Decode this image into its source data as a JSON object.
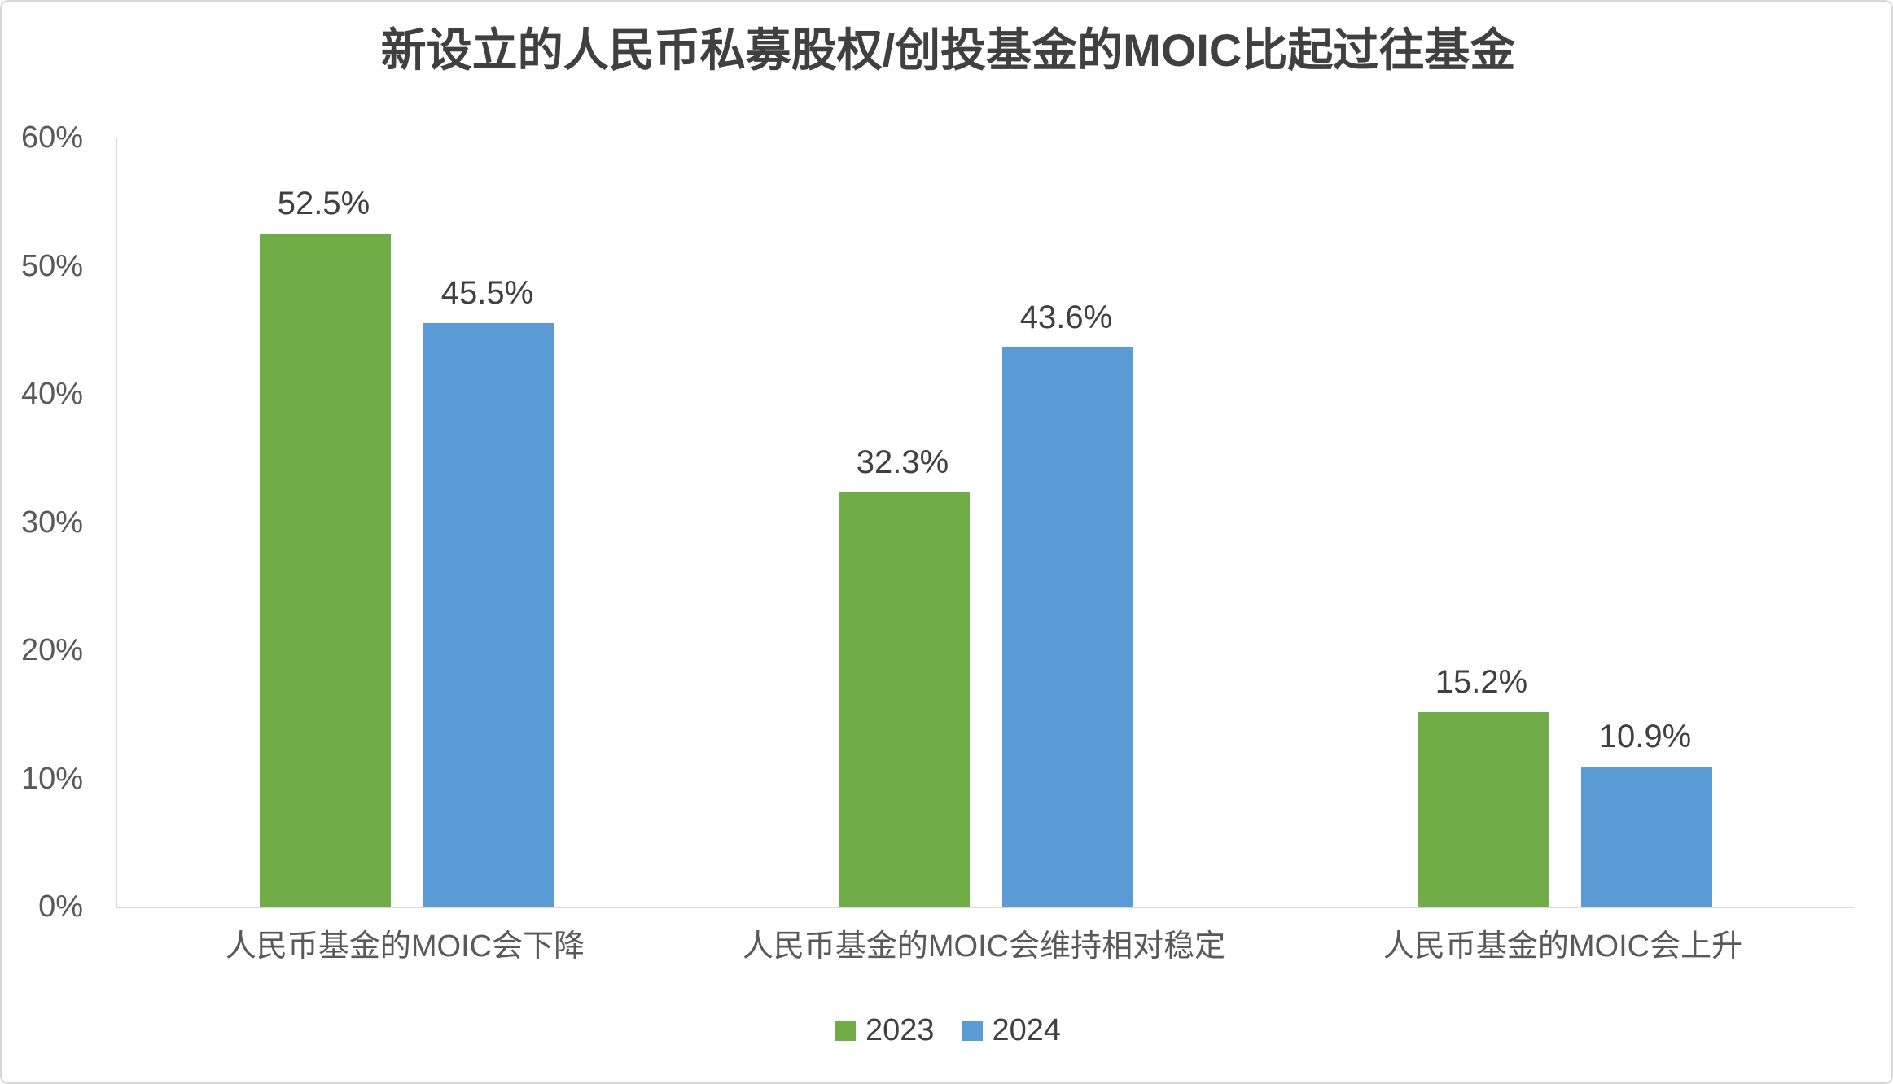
{
  "chart_data": {
    "type": "bar",
    "title": "新设立的人民币私募股权/创投基金的MOIC比起过往基金",
    "categories": [
      "人民币基金的MOIC会下降",
      "人民币基金的MOIC会维持相对稳定",
      "人民币基金的MOIC会上升"
    ],
    "series": [
      {
        "name": "2023",
        "color": "#70AD47",
        "values": [
          52.5,
          32.3,
          15.2
        ],
        "labels": [
          "52.5%",
          "32.3%",
          "15.2%"
        ]
      },
      {
        "name": "2024",
        "color": "#5B9BD5",
        "values": [
          45.5,
          43.6,
          10.9
        ],
        "labels": [
          "45.5%",
          "43.6%",
          "10.9%"
        ]
      }
    ],
    "y_axis": {
      "min": 0,
      "max": 60,
      "tick_step": 10,
      "tick_values": [
        0,
        10,
        20,
        30,
        40,
        50,
        60
      ],
      "tick_labels": [
        "0%",
        "10%",
        "20%",
        "30%",
        "40%",
        "50%",
        "60%"
      ]
    },
    "grid": false,
    "legend_position": "bottom",
    "colors": {
      "title_text": "#404040",
      "axis_text": "#595959",
      "data_label_text": "#404040",
      "axis_line": "#d9d9d9",
      "series_2023": "#70AD47",
      "series_2024": "#5B9BD5"
    }
  }
}
